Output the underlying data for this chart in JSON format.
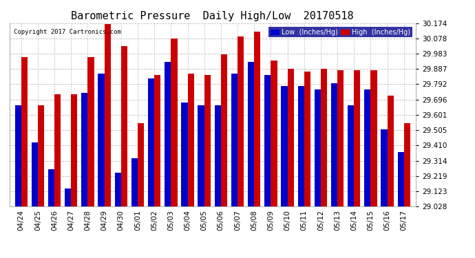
{
  "title": "Barometric Pressure  Daily High/Low  20170518",
  "copyright": "Copyright 2017 Cartronics.com",
  "dates": [
    "04/24",
    "04/25",
    "04/26",
    "04/27",
    "04/28",
    "04/29",
    "04/30",
    "05/01",
    "05/02",
    "05/03",
    "05/04",
    "05/05",
    "05/06",
    "05/07",
    "05/08",
    "05/09",
    "05/10",
    "05/11",
    "05/12",
    "05/13",
    "05/14",
    "05/15",
    "05/16",
    "05/17"
  ],
  "low_values": [
    29.66,
    29.43,
    29.26,
    29.14,
    29.74,
    29.86,
    29.24,
    29.33,
    29.83,
    29.93,
    29.68,
    29.66,
    29.66,
    29.86,
    29.93,
    29.85,
    29.78,
    29.78,
    29.76,
    29.8,
    29.66,
    29.76,
    29.51,
    29.37
  ],
  "high_values": [
    29.96,
    29.66,
    29.73,
    29.73,
    29.96,
    30.17,
    30.03,
    29.55,
    29.85,
    30.08,
    29.86,
    29.85,
    29.98,
    30.09,
    30.12,
    29.94,
    29.89,
    29.87,
    29.89,
    29.88,
    29.88,
    29.88,
    29.72,
    29.55
  ],
  "ymin": 29.028,
  "ymax": 30.174,
  "yticks": [
    29.028,
    29.123,
    29.219,
    29.314,
    29.41,
    29.505,
    29.601,
    29.696,
    29.792,
    29.887,
    29.983,
    30.078,
    30.174
  ],
  "low_color": "#0000cc",
  "high_color": "#cc0000",
  "bg_color": "#ffffff",
  "grid_color": "#bbbbbb",
  "bar_width": 0.38,
  "title_fontsize": 11,
  "tick_fontsize": 7.5
}
